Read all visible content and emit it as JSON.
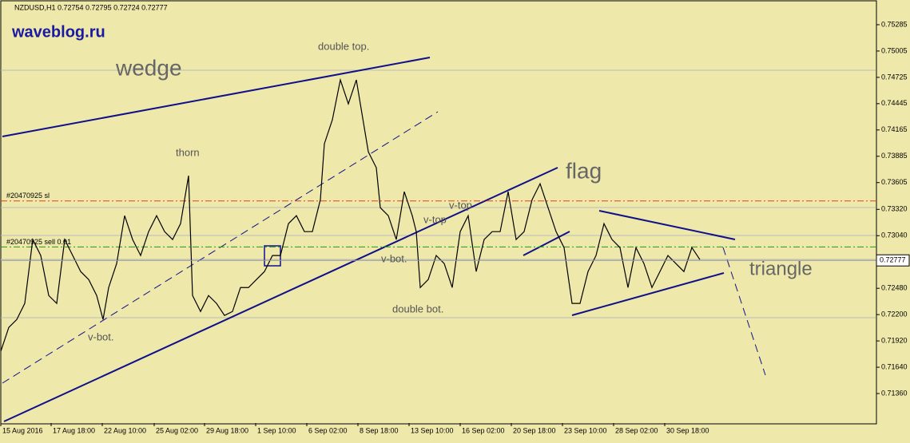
{
  "chart_data": {
    "type": "line",
    "title": "NZDUSD,H1  0.72754 0.72795 0.72724 0.72777",
    "watermark": "waveblog.ru",
    "current_price": 0.72777,
    "xlim": [
      0,
      1096
    ],
    "ylim": [
      0.71046,
      0.75548
    ],
    "xticks": [
      {
        "value": 0,
        "label": "15 Aug 2016"
      },
      {
        "value": 63,
        "label": "17 Aug 18:00"
      },
      {
        "value": 127,
        "label": "22 Aug 10:00"
      },
      {
        "value": 192,
        "label": "25 Aug 02:00"
      },
      {
        "value": 255,
        "label": "29 Aug 18:00"
      },
      {
        "value": 319,
        "label": "1 Sep 10:00"
      },
      {
        "value": 383,
        "label": "6 Sep 02:00"
      },
      {
        "value": 447,
        "label": "8 Sep 18:00"
      },
      {
        "value": 511,
        "label": "13 Sep 10:00"
      },
      {
        "value": 575,
        "label": "16 Sep 02:00"
      },
      {
        "value": 639,
        "label": "20 Sep 18:00"
      },
      {
        "value": 703,
        "label": "23 Sep 10:00"
      },
      {
        "value": 767,
        "label": "28 Sep 02:00"
      },
      {
        "value": 831,
        "label": "30 Sep 18:00"
      }
    ],
    "yticks": [
      0.75285,
      0.75005,
      0.74725,
      0.74445,
      0.74165,
      0.73885,
      0.73605,
      {
        "value": 0.7332,
        "label": "0.73320"
      },
      {
        "value": 0.7304,
        "label": "0.73040"
      },
      {
        "value": 0.7276,
        "label": "0.72760"
      },
      {
        "value": 0.7248,
        "label": "0.72480"
      },
      {
        "value": 0.722,
        "label": "0.72200"
      },
      {
        "value": 0.7192,
        "label": "0.71920"
      },
      {
        "value": 0.7164,
        "label": "0.71640"
      },
      {
        "value": 0.7136,
        "label": "0.71360"
      }
    ],
    "orders": [
      {
        "label": "#20470925 sl",
        "price": 0.7341,
        "color": "#e0401a"
      },
      {
        "label": "#20470925 sell 0.01",
        "price": 0.7292,
        "color": "#1a9a1a"
      }
    ],
    "series": [
      {
        "name": "NZDUSD",
        "color": "#000000",
        "x": [
          0,
          10,
          20,
          30,
          40,
          50,
          60,
          70,
          80,
          90,
          100,
          110,
          120,
          128,
          135,
          145,
          155,
          165,
          175,
          185,
          195,
          205,
          215,
          225,
          235,
          240,
          250,
          260,
          270,
          280,
          290,
          300,
          310,
          320,
          330,
          340,
          350,
          360,
          370,
          380,
          390,
          400,
          405,
          415,
          425,
          435,
          445,
          455,
          460,
          470,
          475,
          485,
          495,
          505,
          515,
          520,
          525,
          535,
          545,
          555,
          565,
          575,
          585,
          595,
          605,
          615,
          625,
          635,
          645,
          655,
          665,
          675,
          685,
          695,
          705,
          715,
          725,
          735,
          745,
          755,
          765,
          775,
          785,
          795,
          805,
          815,
          825,
          835,
          845,
          855,
          865,
          875
        ],
        "values": [
          0.7181,
          0.72064,
          0.72148,
          0.72319,
          0.72999,
          0.72829,
          0.72403,
          0.72319,
          0.72999,
          0.72829,
          0.72658,
          0.72573,
          0.72403,
          0.72148,
          0.72488,
          0.72743,
          0.73253,
          0.72999,
          0.72829,
          0.73083,
          0.73253,
          0.73083,
          0.72999,
          0.73168,
          0.73678,
          0.72403,
          0.72233,
          0.72403,
          0.72319,
          0.72191,
          0.72233,
          0.72488,
          0.72488,
          0.72573,
          0.72658,
          0.72829,
          0.72829,
          0.73168,
          0.73253,
          0.73083,
          0.73083,
          0.73423,
          0.74018,
          0.74273,
          0.74698,
          0.74443,
          0.74698,
          0.74188,
          0.73933,
          0.73763,
          0.73338,
          0.73253,
          0.72999,
          0.73508,
          0.73253,
          0.73083,
          0.72488,
          0.72573,
          0.72829,
          0.72743,
          0.72488,
          0.73083,
          0.73253,
          0.72658,
          0.72999,
          0.73083,
          0.73083,
          0.73508,
          0.72999,
          0.73083,
          0.73423,
          0.73593,
          0.73338,
          0.73083,
          0.72913,
          0.72319,
          0.72319,
          0.72658,
          0.72829,
          0.73168,
          0.72999,
          0.72913,
          0.72488,
          0.72913,
          0.72743,
          0.72488,
          0.72658,
          0.72829,
          0.72743,
          0.72658,
          0.72913,
          0.72786
        ]
      }
    ],
    "annotations": [
      "wedge",
      "flag",
      "triangle",
      "double top.",
      "thorn",
      "v-bot.",
      "v-top",
      "v-top",
      "v-bot.",
      "double bot."
    ]
  }
}
